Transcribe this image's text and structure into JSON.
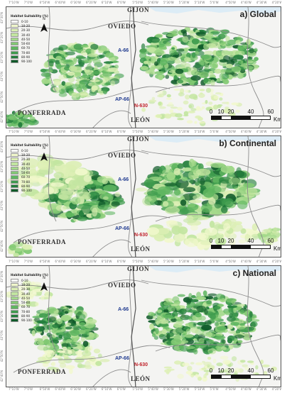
{
  "figure": {
    "legend_title": "Habitat Suitability (%)",
    "legend_classes": [
      "0-10",
      "10-20",
      "20-30",
      "30-40",
      "40-50",
      "50-60",
      "60-70",
      "70-80",
      "80-90",
      "90-100"
    ],
    "legend_colors": [
      "#ffffff",
      "#f1f8cc",
      "#dcefb4",
      "#c2e5a0",
      "#a3d98a",
      "#82c973",
      "#5fb660",
      "#3f9c4e",
      "#237e3c",
      "#0f5a29"
    ],
    "north_label": "N",
    "top_ticks": [
      "7°10'W",
      "7°0'W",
      "6°50'W",
      "6°40'W",
      "6°30'W",
      "6°20'W",
      "6°10'W",
      "6°0'W",
      "5°50'W",
      "5°40'W",
      "5°30'W",
      "5°20'W",
      "5°10'W",
      "5°0'W",
      "4°50'W",
      "4°40'W",
      "4°30'W",
      "4°20'W"
    ],
    "left_ticks": [
      "43°30'N",
      "43°20'N",
      "43°10'N",
      "43°0'N",
      "42°50'N",
      "42°40'N"
    ],
    "cities": {
      "gijon": "GIJON",
      "oviedo": "OVIEDO",
      "ponferrada": "PONFERRADA",
      "leon": "LEÓN"
    },
    "roads": {
      "a66_upper": "A-66",
      "ap66": "AP-66",
      "n630": "N-630"
    },
    "scale_labels": [
      "0",
      "10",
      "20",
      "40",
      "60"
    ],
    "scale_unit": "Km",
    "colors": {
      "sea": "#dcecf6",
      "road_blue": "#1f3a8f",
      "road_red": "#c0232b",
      "boundary": "#8c8c8c"
    }
  },
  "panels": [
    {
      "title": "a) Global"
    },
    {
      "title": "b) Continental"
    },
    {
      "title": "c) National"
    }
  ]
}
